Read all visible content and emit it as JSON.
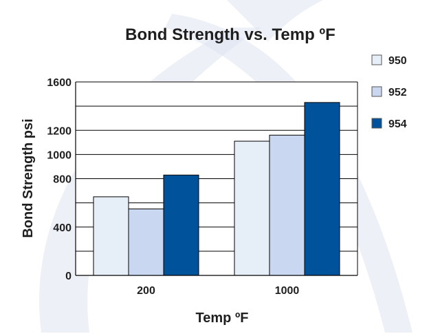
{
  "chart_data": {
    "type": "bar",
    "title": "Bond Strength vs. Temp ºF",
    "xlabel": "Temp ºF",
    "ylabel": "Bond Strength  psi",
    "categories": [
      "200",
      "1000"
    ],
    "series": [
      {
        "name": "950",
        "values": [
          650,
          1110
        ],
        "color": "#e6eef8"
      },
      {
        "name": "952",
        "values": [
          550,
          1160
        ],
        "color": "#c9d8f0"
      },
      {
        "name": "954",
        "values": [
          830,
          1430
        ],
        "color": "#00539b"
      }
    ],
    "ylim": [
      0,
      1600
    ],
    "yticks": [
      0,
      400,
      800,
      1000,
      1200,
      1600
    ],
    "gridlines": [
      0,
      200,
      400,
      600,
      800,
      1000,
      1200,
      1400,
      1600
    ],
    "grid": true,
    "legend_position": "right",
    "background_color": "#ffffff",
    "watermark_color": "#dfe4f1"
  }
}
